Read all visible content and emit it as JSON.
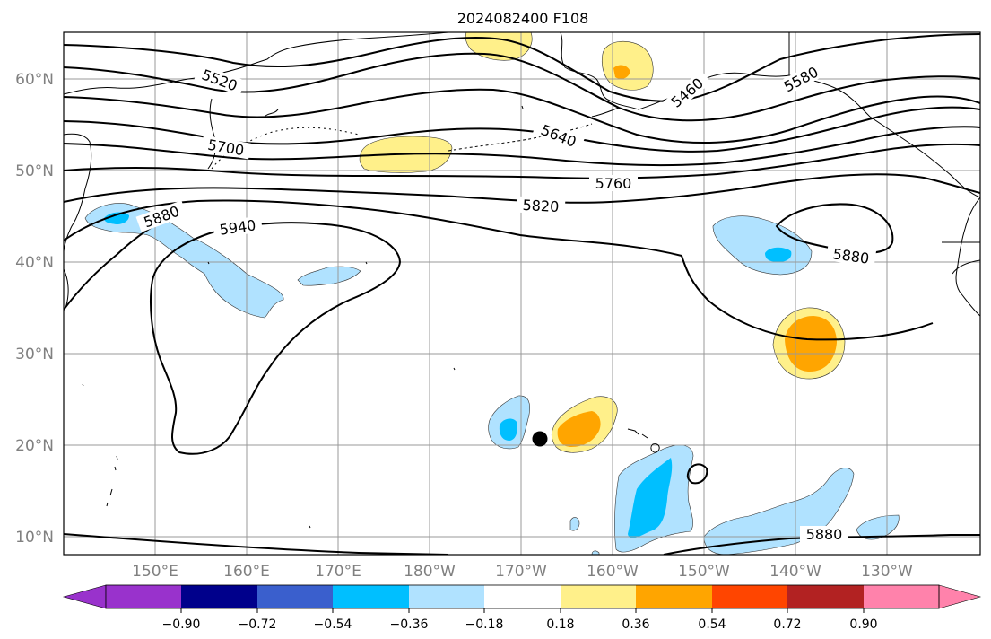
{
  "title": "2024082400 F108",
  "axes": {
    "lat_labels": [
      "60°N",
      "50°N",
      "40°N",
      "30°N",
      "20°N",
      "10°N"
    ],
    "lon_labels": [
      "150°E",
      "160°E",
      "170°E",
      "180°W",
      "170°W",
      "160°W",
      "150°W",
      "140°W",
      "130°W"
    ]
  },
  "contour_labels": [
    "5520",
    "5700",
    "5640",
    "5760",
    "5820",
    "5880",
    "5940",
    "5460",
    "5580",
    "5880",
    "5880"
  ],
  "colorbar": {
    "ticks": [
      "−0.90",
      "−0.72",
      "−0.54",
      "−0.36",
      "−0.18",
      "0.18",
      "0.36",
      "0.54",
      "0.72",
      "0.90"
    ],
    "colors": [
      "#9932cc",
      "#00008b",
      "#3a5fcd",
      "#00bfff",
      "#b0e2ff",
      "#ffffff",
      "#fff08a",
      "#ffa500",
      "#ff4500",
      "#b22222",
      "#ff82ab"
    ]
  },
  "colors": {
    "light_blue": "#b0e2ff",
    "blue": "#00bfff",
    "light_yellow": "#fff08a",
    "orange": "#ffa500",
    "grid": "#999999",
    "tick_label": "#808080"
  }
}
